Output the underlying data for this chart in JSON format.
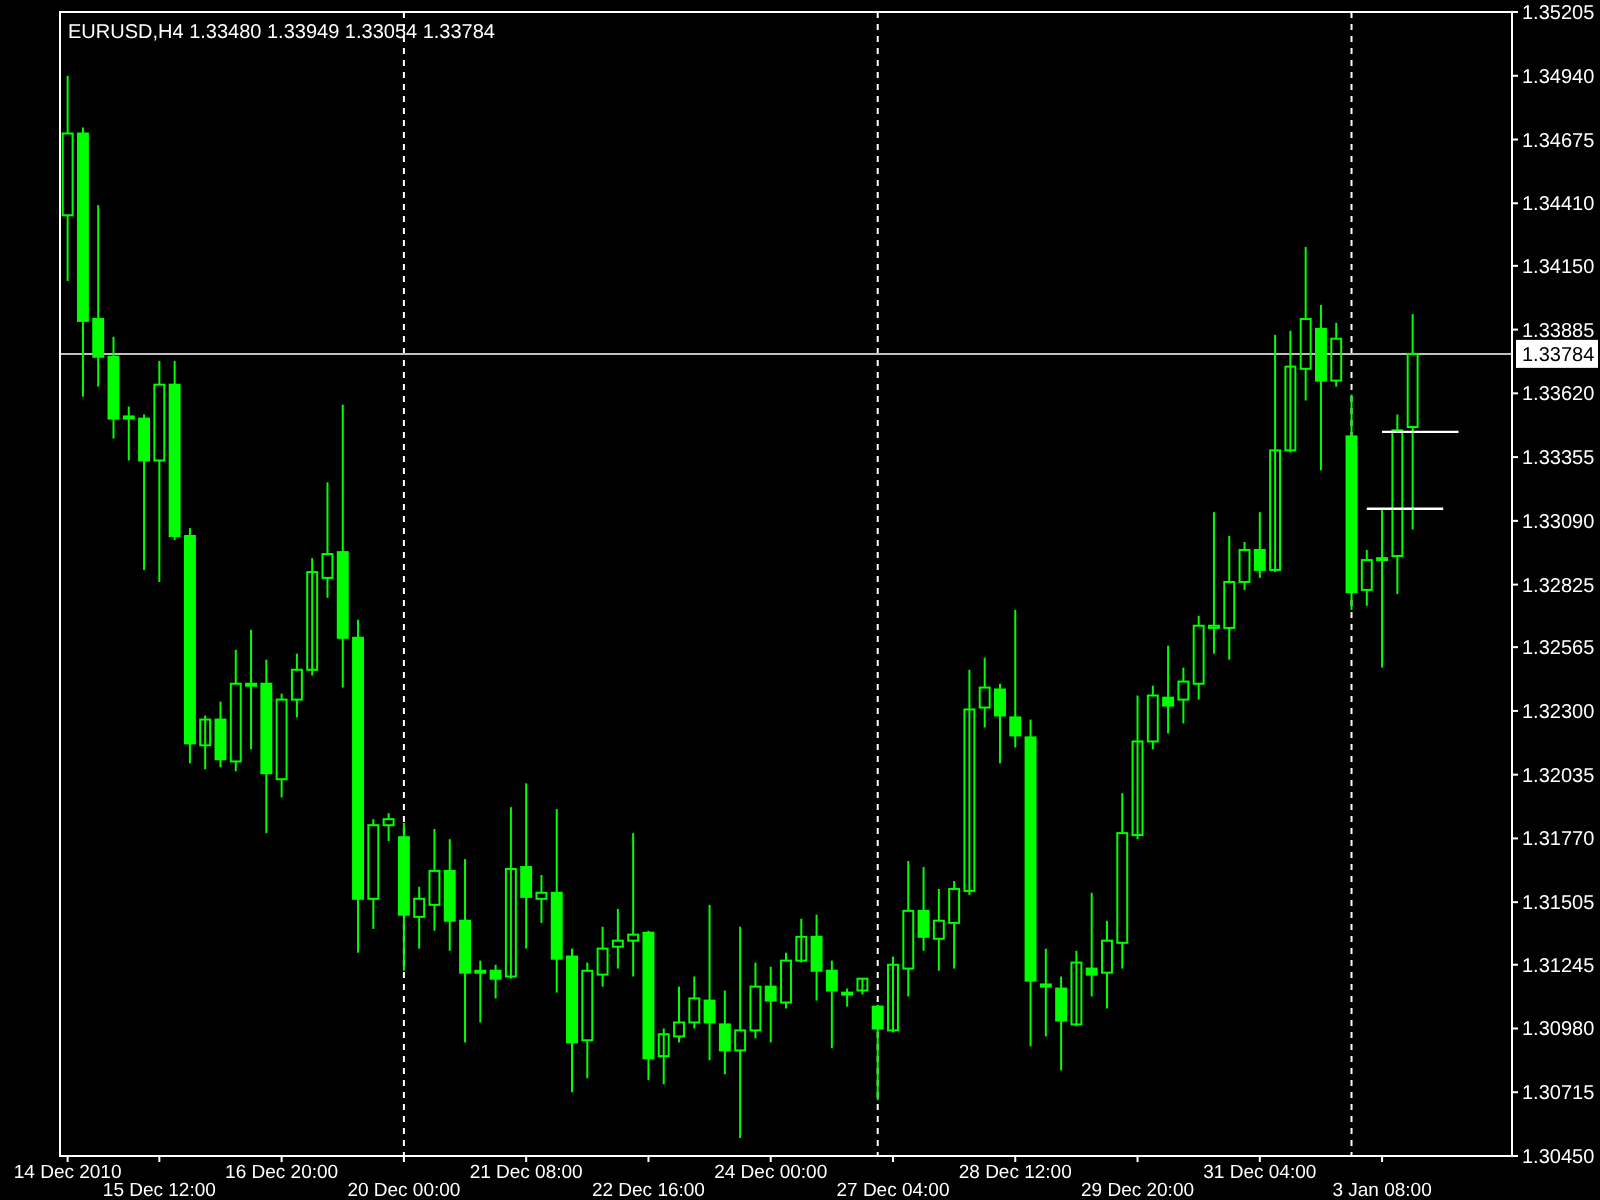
{
  "chart_data": {
    "type": "candlestick",
    "title": "EURUSD,H4 1.33480 1.33949 1.33054 1.33784",
    "categories": [
      "14 Dec 2010",
      null,
      null,
      null,
      null,
      null,
      "15 Dec 12:00",
      null,
      null,
      null,
      null,
      null,
      null,
      null,
      "16 Dec 20:00",
      null,
      null,
      null,
      null,
      null,
      null,
      null,
      "20 Dec 00:00",
      null,
      null,
      null,
      null,
      null,
      null,
      null,
      "21 Dec 08:00",
      null,
      null,
      null,
      null,
      null,
      null,
      null,
      "22 Dec 16:00",
      null,
      null,
      null,
      null,
      null,
      null,
      null,
      "24 Dec 00:00",
      null,
      null,
      null,
      null,
      null,
      null,
      null,
      "27 Dec 04:00",
      null,
      null,
      null,
      null,
      null,
      null,
      null,
      "28 Dec 12:00",
      null,
      null,
      null,
      null,
      null,
      null,
      null,
      "29 Dec 20:00",
      null,
      null,
      null,
      null,
      null,
      null,
      null,
      "31 Dec 04:00",
      null,
      null,
      null,
      null,
      null,
      null,
      null,
      "3 Jan 08:00",
      null,
      null,
      null,
      null,
      null,
      null,
      null,
      null
    ],
    "ylim": [
      1.3045,
      1.35205
    ],
    "yticks": [
      {
        "value": 1.3045,
        "label": "1.30450"
      },
      {
        "value": 1.30715,
        "label": "1.30715"
      },
      {
        "value": 1.3098,
        "label": "1.30980"
      },
      {
        "value": 1.31245,
        "label": "1.31245"
      },
      {
        "value": 1.31505,
        "label": "1.31505"
      },
      {
        "value": 1.3177,
        "label": "1.31770"
      },
      {
        "value": 1.32035,
        "label": "1.32035"
      },
      {
        "value": 1.323,
        "label": "1.32300"
      },
      {
        "value": 1.32565,
        "label": "1.32565"
      },
      {
        "value": 1.32825,
        "label": "1.32825"
      },
      {
        "value": 1.3309,
        "label": "1.33090"
      },
      {
        "value": 1.33355,
        "label": "1.33355"
      },
      {
        "value": 1.3362,
        "label": "1.33620"
      },
      {
        "value": 1.33885,
        "label": "1.33885"
      },
      {
        "value": 1.3415,
        "label": "1.34150"
      },
      {
        "value": 1.3441,
        "label": "1.34410"
      },
      {
        "value": 1.34675,
        "label": "1.34675"
      },
      {
        "value": 1.3494,
        "label": "1.34940"
      },
      {
        "value": 1.35205,
        "label": "1.35205"
      }
    ],
    "ref_lines": [
      {
        "axis": "y",
        "value": 1.33784,
        "label": "1.33784",
        "color": "#c0c0c0",
        "line_style": "solid"
      }
    ],
    "series": [
      {
        "color": "#00ff00",
        "ohlc": [
          [
            1.3436,
            1.3494,
            1.34087,
            1.347
          ],
          [
            1.347,
            1.34725,
            1.33606,
            1.33921
          ],
          [
            1.33929,
            1.34402,
            1.33648,
            1.33772
          ],
          [
            1.33772,
            1.33855,
            1.33432,
            1.33515
          ],
          [
            1.33524,
            1.33565,
            1.33341,
            1.33515
          ],
          [
            1.33515,
            1.33532,
            1.32886,
            1.33341
          ],
          [
            1.33341,
            1.33755,
            1.32836,
            1.33656
          ],
          [
            1.33656,
            1.33755,
            1.3301,
            1.33027
          ],
          [
            1.33027,
            1.3306,
            1.32082,
            1.32165
          ],
          [
            1.32157,
            1.32281,
            1.32057,
            1.32264
          ],
          [
            1.32264,
            1.32339,
            1.32066,
            1.32099
          ],
          [
            1.3209,
            1.32554,
            1.32049,
            1.32413
          ],
          [
            1.32405,
            1.32637,
            1.3214,
            1.32413
          ],
          [
            1.32413,
            1.32513,
            1.31792,
            1.32041
          ],
          [
            1.32016,
            1.32372,
            1.31941,
            1.32347
          ],
          [
            1.32347,
            1.32538,
            1.32273,
            1.32471
          ],
          [
            1.32471,
            1.32935,
            1.32447,
            1.32877
          ],
          [
            1.32853,
            1.3325,
            1.3277,
            1.32952
          ],
          [
            1.3296,
            1.33573,
            1.32397,
            1.32604
          ],
          [
            1.32604,
            1.32679,
            1.31295,
            1.31519
          ],
          [
            1.31519,
            1.3185,
            1.31394,
            1.31825
          ],
          [
            1.31825,
            1.31875,
            1.31759,
            1.3185
          ],
          [
            1.31775,
            1.31834,
            1.3122,
            1.31453
          ],
          [
            1.31444,
            1.31569,
            1.31312,
            1.31519
          ],
          [
            1.31494,
            1.31809,
            1.31386,
            1.31635
          ],
          [
            1.31635,
            1.31767,
            1.31303,
            1.31428
          ],
          [
            1.31428,
            1.31684,
            1.30922,
            1.31212
          ],
          [
            1.3122,
            1.31262,
            1.31005,
            1.31212
          ],
          [
            1.3122,
            1.31245,
            1.31105,
            1.31187
          ],
          [
            1.31196,
            1.319,
            1.31187,
            1.31643
          ],
          [
            1.31651,
            1.31999,
            1.31312,
            1.31527
          ],
          [
            1.31519,
            1.31618,
            1.31419,
            1.31544
          ],
          [
            1.31544,
            1.31892,
            1.31129,
            1.3127
          ],
          [
            1.31279,
            1.31312,
            1.30715,
            1.30922
          ],
          [
            1.30931,
            1.31254,
            1.30773,
            1.3122
          ],
          [
            1.31204,
            1.31403,
            1.31154,
            1.31312
          ],
          [
            1.3132,
            1.31477,
            1.31229,
            1.31345
          ],
          [
            1.31345,
            1.31792,
            1.31196,
            1.3137
          ],
          [
            1.31378,
            1.31386,
            1.30765,
            1.30856
          ],
          [
            1.30865,
            1.3098,
            1.30748,
            1.30956
          ],
          [
            1.30947,
            1.31154,
            1.30922,
            1.31005
          ],
          [
            1.31005,
            1.31196,
            1.3098,
            1.31105
          ],
          [
            1.31096,
            1.31494,
            1.30848,
            1.31005
          ],
          [
            1.30997,
            1.31138,
            1.3079,
            1.30889
          ],
          [
            1.30889,
            1.31403,
            1.30525,
            1.30972
          ],
          [
            1.30972,
            1.31254,
            1.30939,
            1.31154
          ],
          [
            1.31154,
            1.31237,
            1.30922,
            1.31096
          ],
          [
            1.31088,
            1.31295,
            1.31063,
            1.31262
          ],
          [
            1.31262,
            1.31436,
            1.31254,
            1.31361
          ],
          [
            1.31361,
            1.31453,
            1.31096,
            1.3122
          ],
          [
            1.3122,
            1.31262,
            1.30898,
            1.31138
          ],
          [
            1.31129,
            1.31146,
            1.31071,
            1.31129
          ],
          [
            1.31138,
            1.31187,
            1.31121,
            1.31187
          ],
          [
            1.31071,
            1.31079,
            1.30682,
            1.3098
          ],
          [
            1.30972,
            1.31279,
            1.30964,
            1.31245
          ],
          [
            1.31229,
            1.31676,
            1.31113,
            1.31469
          ],
          [
            1.31469,
            1.31651,
            1.31303,
            1.31361
          ],
          [
            1.31353,
            1.3156,
            1.3122,
            1.31428
          ],
          [
            1.31419,
            1.31593,
            1.31229,
            1.3156
          ],
          [
            1.31552,
            1.32471,
            1.31535,
            1.32306
          ],
          [
            1.32314,
            1.32521,
            1.32231,
            1.32397
          ],
          [
            1.32389,
            1.32413,
            1.32082,
            1.32281
          ],
          [
            1.32273,
            1.3272,
            1.32148,
            1.32198
          ],
          [
            1.3219,
            1.32264,
            1.30906,
            1.31179
          ],
          [
            1.31163,
            1.31312,
            1.30947,
            1.31154
          ],
          [
            1.31146,
            1.31196,
            1.30806,
            1.31013
          ],
          [
            1.30997,
            1.31303,
            1.30989,
            1.31254
          ],
          [
            1.31229,
            1.31544,
            1.31113,
            1.31204
          ],
          [
            1.31212,
            1.31428,
            1.31063,
            1.31345
          ],
          [
            1.31336,
            1.31958,
            1.31229,
            1.31792
          ],
          [
            1.31784,
            1.32364,
            1.31767,
            1.32173
          ],
          [
            1.32173,
            1.32405,
            1.3214,
            1.32364
          ],
          [
            1.32355,
            1.32571,
            1.32206,
            1.32322
          ],
          [
            1.32347,
            1.3248,
            1.32248,
            1.32422
          ],
          [
            1.32413,
            1.32695,
            1.32347,
            1.32654
          ],
          [
            1.32645,
            1.33126,
            1.32538,
            1.32654
          ],
          [
            1.32645,
            1.33027,
            1.32513,
            1.32836
          ],
          [
            1.32836,
            1.33002,
            1.32803,
            1.32969
          ],
          [
            1.32969,
            1.33126,
            1.32853,
            1.32886
          ],
          [
            1.32886,
            1.33863,
            1.32877,
            1.33383
          ],
          [
            1.33383,
            1.3388,
            1.33374,
            1.33731
          ],
          [
            1.33722,
            1.34228,
            1.3359,
            1.33929
          ],
          [
            1.33888,
            1.33987,
            1.333,
            1.33673
          ],
          [
            1.33673,
            1.33913,
            1.33648,
            1.33847
          ],
          [
            1.33441,
            1.33615,
            1.3272,
            1.32794
          ],
          [
            1.32803,
            1.32969,
            1.32737,
            1.32927
          ],
          [
            1.32927,
            1.33142,
            1.3248,
            1.32935
          ],
          [
            1.32944,
            1.33532,
            1.32786,
            1.33466
          ],
          [
            1.3348,
            1.33949,
            1.33054,
            1.33784
          ],
          null,
          null,
          null,
          null,
          null,
          null
        ]
      },
      {
        "type": "line",
        "color": "#ffffff",
        "values": [
          null,
          null,
          null,
          null,
          null,
          null,
          null,
          null,
          null,
          null,
          null,
          null,
          null,
          null,
          null,
          null,
          null,
          null,
          null,
          null,
          null,
          null,
          null,
          null,
          null,
          null,
          null,
          null,
          null,
          null,
          null,
          null,
          null,
          null,
          null,
          null,
          null,
          null,
          null,
          null,
          null,
          null,
          null,
          null,
          null,
          null,
          null,
          null,
          null,
          null,
          null,
          null,
          null,
          null,
          null,
          null,
          null,
          null,
          null,
          null,
          null,
          null,
          null,
          null,
          null,
          null,
          null,
          null,
          null,
          null,
          null,
          null,
          null,
          null,
          null,
          null,
          null,
          null,
          null,
          null,
          null,
          null,
          null,
          null,
          null,
          null,
          1.3346,
          1.3346,
          1.3346,
          1.3346,
          1.3346,
          1.3346,
          null,
          null,
          null
        ]
      },
      {
        "type": "line",
        "color": "#ffffff",
        "values": [
          null,
          null,
          null,
          null,
          null,
          null,
          null,
          null,
          null,
          null,
          null,
          null,
          null,
          null,
          null,
          null,
          null,
          null,
          null,
          null,
          null,
          null,
          null,
          null,
          null,
          null,
          null,
          null,
          null,
          null,
          null,
          null,
          null,
          null,
          null,
          null,
          null,
          null,
          null,
          null,
          null,
          null,
          null,
          null,
          null,
          null,
          null,
          null,
          null,
          null,
          null,
          null,
          null,
          null,
          null,
          null,
          null,
          null,
          null,
          null,
          null,
          null,
          null,
          null,
          null,
          null,
          null,
          null,
          null,
          null,
          null,
          null,
          null,
          null,
          null,
          null,
          null,
          null,
          null,
          null,
          null,
          null,
          null,
          null,
          null,
          1.3314,
          1.3314,
          1.3314,
          1.3314,
          1.3314,
          1.3314,
          null,
          null,
          null,
          null
        ]
      }
    ]
  }
}
